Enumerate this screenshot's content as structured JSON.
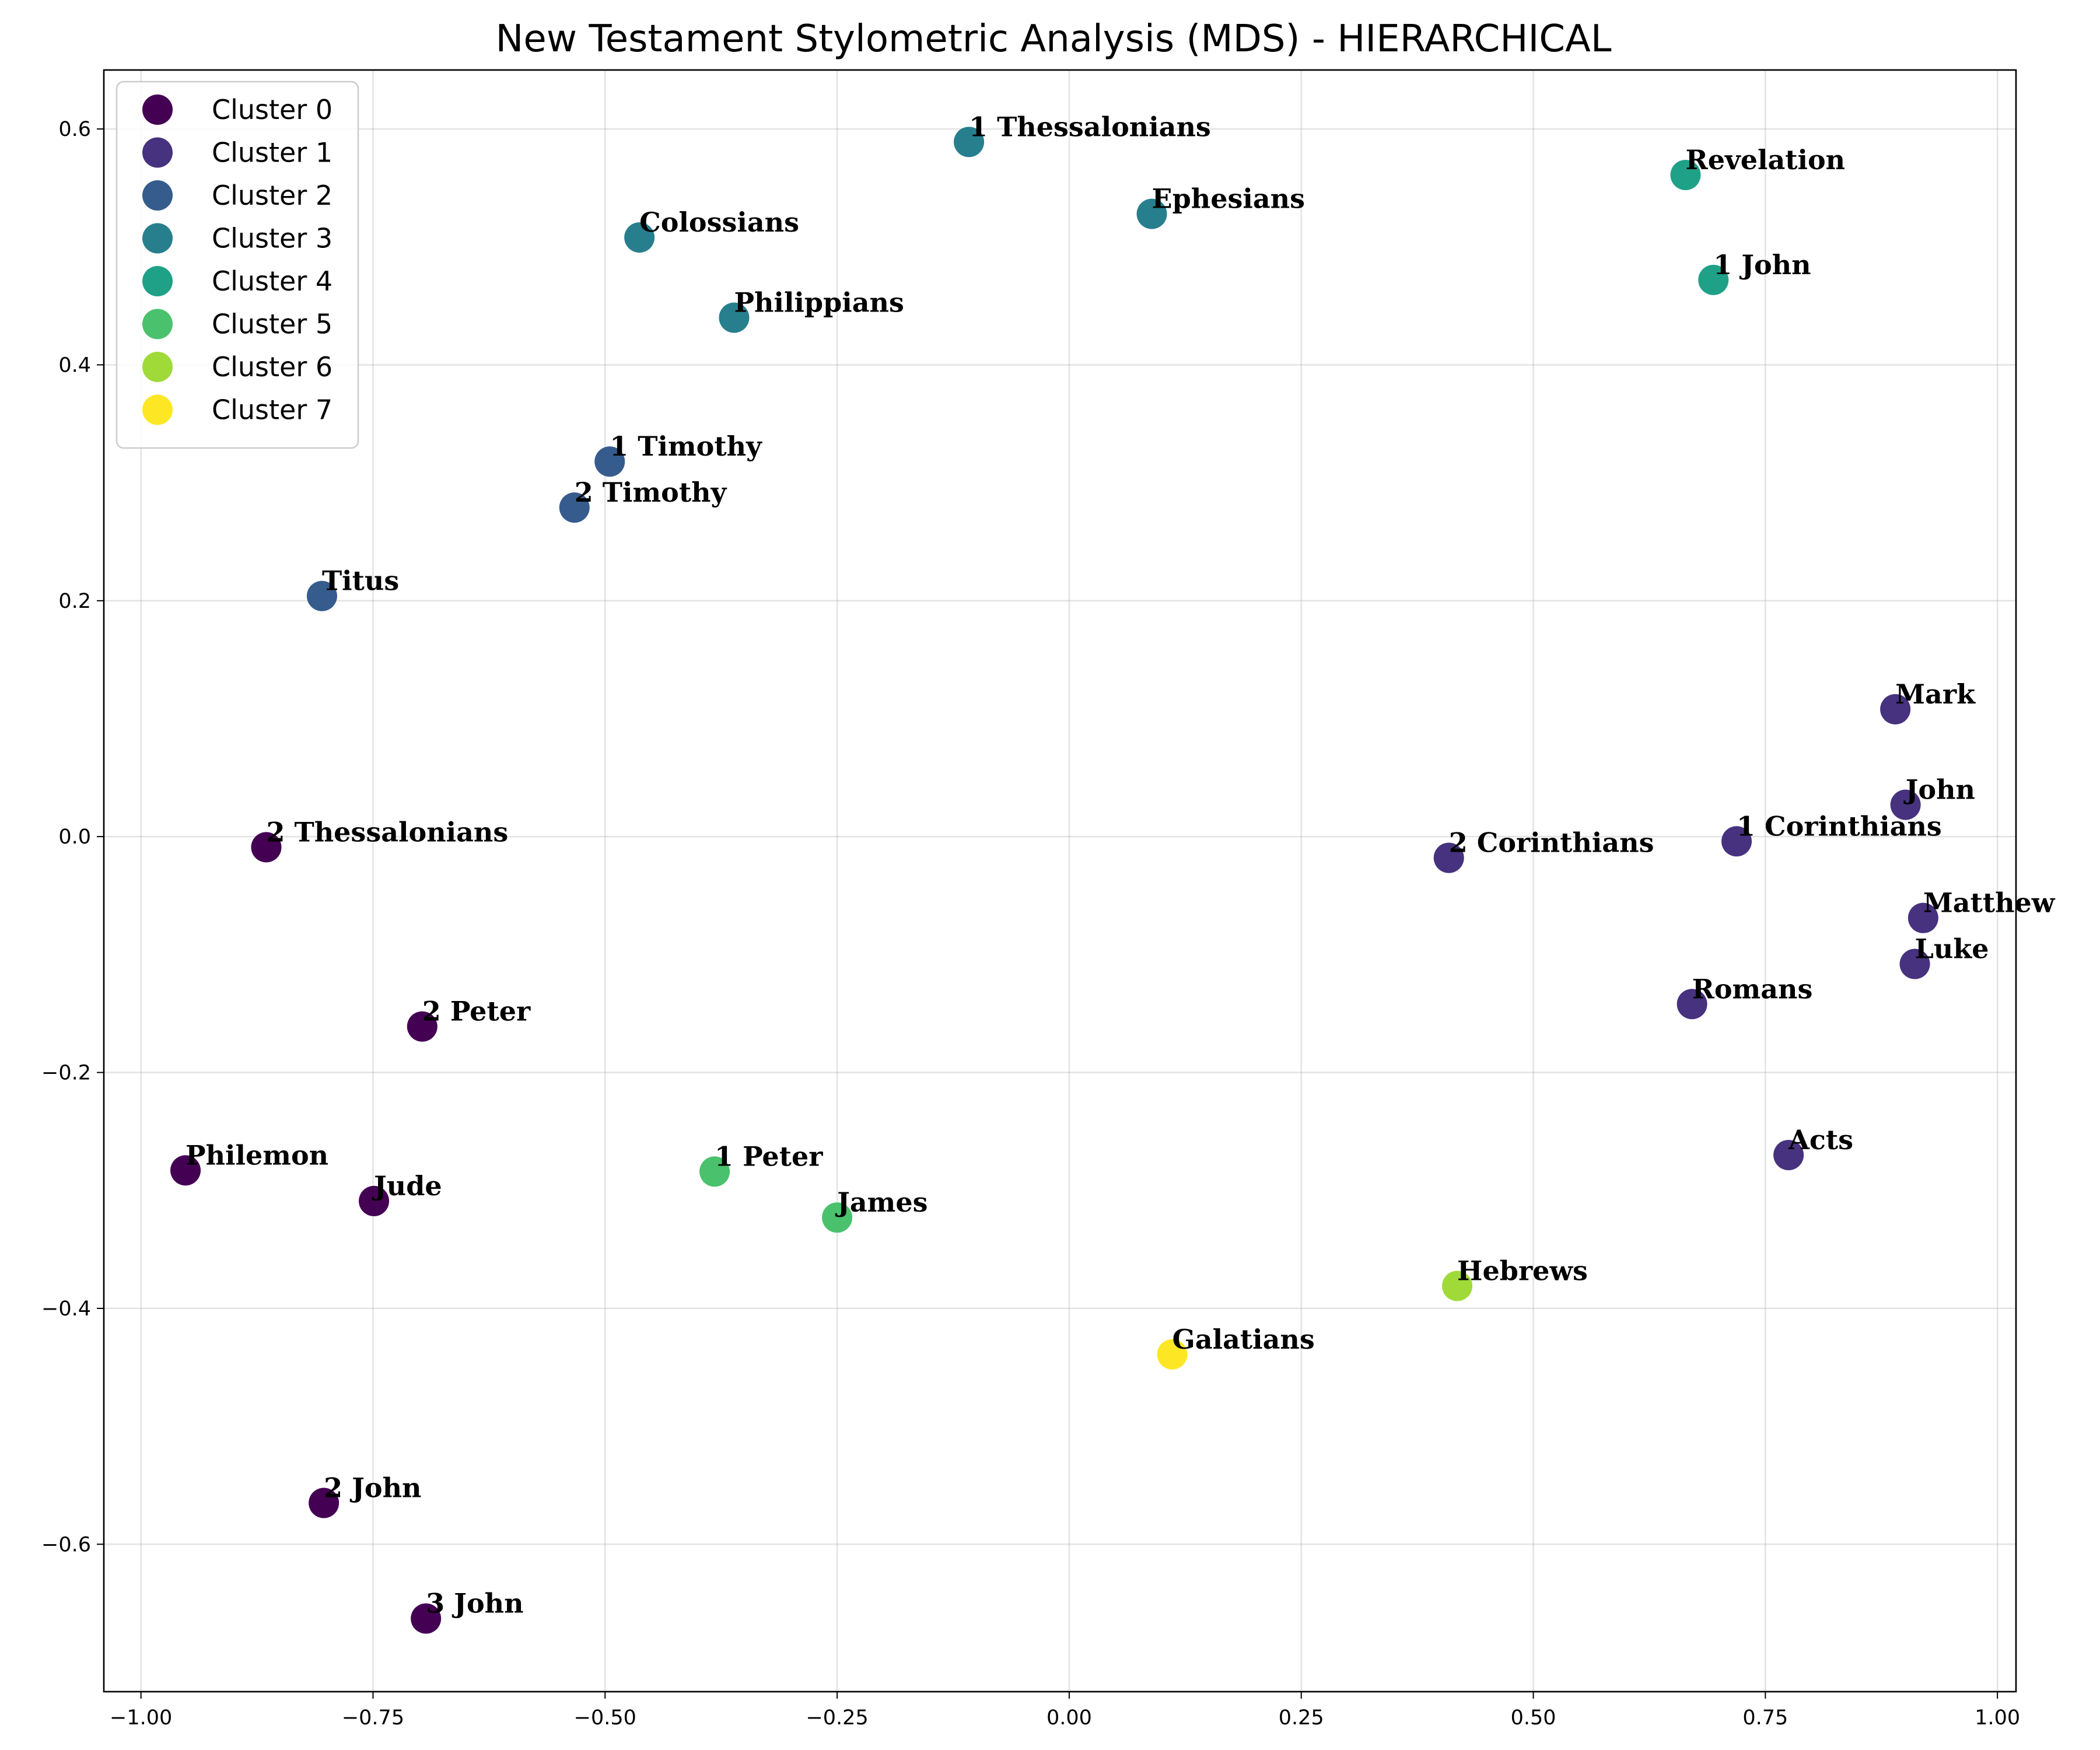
{
  "chart_data": {
    "type": "scatter",
    "title": "New Testament Stylometric Analysis (MDS) - HIERARCHICAL",
    "xlabel": "",
    "ylabel": "",
    "xlim": [
      -1.04,
      1.02
    ],
    "ylim": [
      -0.725,
      0.65
    ],
    "grid": true,
    "legend_position": "top-left",
    "x_ticks": [
      -1.0,
      -0.75,
      -0.5,
      -0.25,
      0.0,
      0.25,
      0.5,
      0.75,
      1.0
    ],
    "x_tick_labels": [
      "−1.00",
      "−0.75",
      "−0.50",
      "−0.25",
      "0.00",
      "0.25",
      "0.50",
      "0.75",
      "1.00"
    ],
    "y_ticks": [
      0.6,
      0.4,
      0.2,
      0.0,
      -0.2,
      -0.4,
      -0.6
    ],
    "y_tick_labels": [
      "0.6",
      "0.4",
      "0.2",
      "0.0",
      "−0.2",
      "−0.4",
      "−0.6"
    ],
    "clusters": [
      {
        "name": "Cluster 0",
        "color": "#440154"
      },
      {
        "name": "Cluster 1",
        "color": "#46327e"
      },
      {
        "name": "Cluster 2",
        "color": "#365c8d"
      },
      {
        "name": "Cluster 3",
        "color": "#277f8e"
      },
      {
        "name": "Cluster 4",
        "color": "#1fa187"
      },
      {
        "name": "Cluster 5",
        "color": "#4ac16d"
      },
      {
        "name": "Cluster 6",
        "color": "#a0da39"
      },
      {
        "name": "Cluster 7",
        "color": "#fde725"
      }
    ],
    "points": [
      {
        "label": "2 Thessalonians",
        "x": -0.865,
        "y": -0.009,
        "cluster": 0
      },
      {
        "label": "2 Peter",
        "x": -0.697,
        "y": -0.161,
        "cluster": 0
      },
      {
        "label": "Philemon",
        "x": -0.952,
        "y": -0.283,
        "cluster": 0
      },
      {
        "label": "Jude",
        "x": -0.749,
        "y": -0.309,
        "cluster": 0
      },
      {
        "label": "2 John",
        "x": -0.803,
        "y": -0.565,
        "cluster": 0
      },
      {
        "label": "3 John",
        "x": -0.693,
        "y": -0.663,
        "cluster": 0
      },
      {
        "label": "Mark",
        "x": 0.89,
        "y": 0.108,
        "cluster": 1
      },
      {
        "label": "John",
        "x": 0.901,
        "y": 0.027,
        "cluster": 1
      },
      {
        "label": "1 Corinthians",
        "x": 0.719,
        "y": -0.004,
        "cluster": 1
      },
      {
        "label": "2 Corinthians",
        "x": 0.409,
        "y": -0.018,
        "cluster": 1
      },
      {
        "label": "Matthew",
        "x": 0.92,
        "y": -0.069,
        "cluster": 1
      },
      {
        "label": "Luke",
        "x": 0.911,
        "y": -0.108,
        "cluster": 1
      },
      {
        "label": "Romans",
        "x": 0.671,
        "y": -0.142,
        "cluster": 1
      },
      {
        "label": "Acts",
        "x": 0.775,
        "y": -0.27,
        "cluster": 1
      },
      {
        "label": "1 Timothy",
        "x": -0.495,
        "y": 0.318,
        "cluster": 2
      },
      {
        "label": "2 Timothy",
        "x": -0.533,
        "y": 0.279,
        "cluster": 2
      },
      {
        "label": "Titus",
        "x": -0.805,
        "y": 0.204,
        "cluster": 2
      },
      {
        "label": "1 Thessalonians",
        "x": -0.108,
        "y": 0.589,
        "cluster": 3
      },
      {
        "label": "Ephesians",
        "x": 0.089,
        "y": 0.528,
        "cluster": 3
      },
      {
        "label": "Colossians",
        "x": -0.463,
        "y": 0.508,
        "cluster": 3
      },
      {
        "label": "Philippians",
        "x": -0.361,
        "y": 0.44,
        "cluster": 3
      },
      {
        "label": "Revelation",
        "x": 0.664,
        "y": 0.561,
        "cluster": 4
      },
      {
        "label": "1 John",
        "x": 0.694,
        "y": 0.472,
        "cluster": 4
      },
      {
        "label": "1 Peter",
        "x": -0.382,
        "y": -0.284,
        "cluster": 5
      },
      {
        "label": "James",
        "x": -0.25,
        "y": -0.323,
        "cluster": 5
      },
      {
        "label": "Hebrews",
        "x": 0.418,
        "y": -0.381,
        "cluster": 6
      },
      {
        "label": "Galatians",
        "x": 0.111,
        "y": -0.439,
        "cluster": 7
      }
    ]
  }
}
